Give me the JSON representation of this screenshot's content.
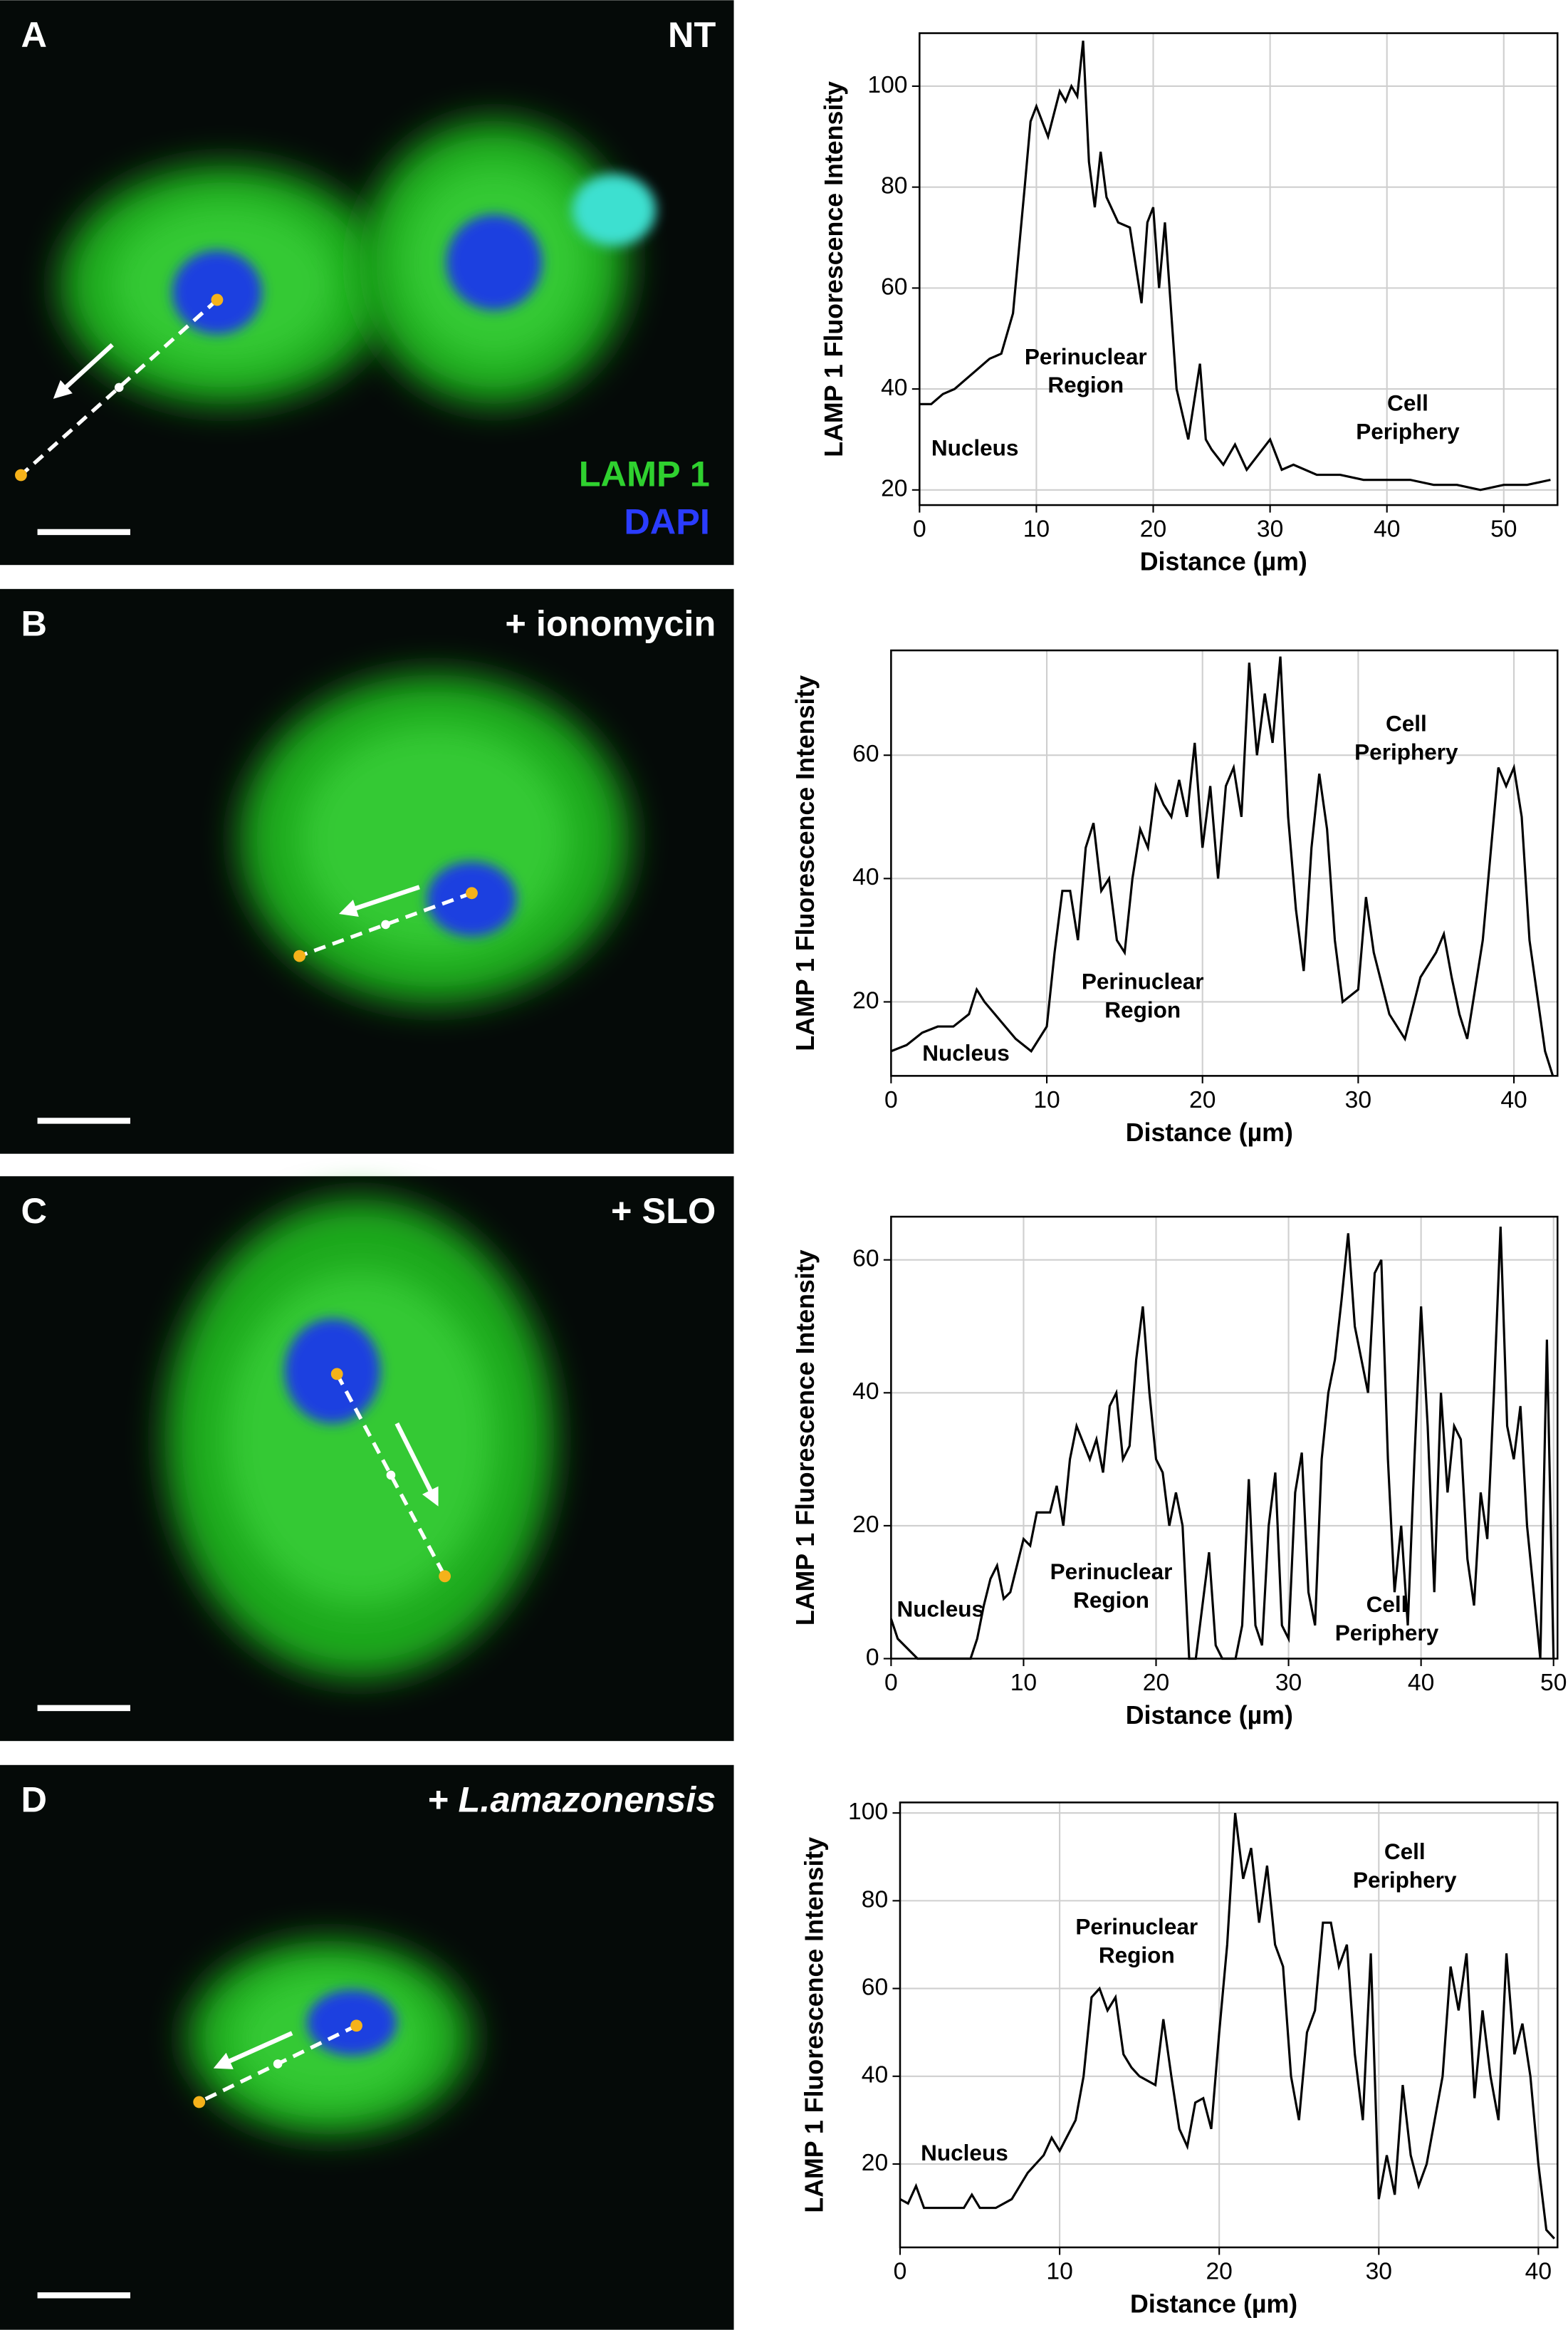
{
  "images": [
    {
      "letter": "A",
      "label": "NT",
      "stains": [
        "LAMP 1",
        "DAPI"
      ]
    },
    {
      "letter": "B",
      "label": "+ ionomycin"
    },
    {
      "letter": "C",
      "label": "+ SLO"
    },
    {
      "letter": "D",
      "label": "+ L.amazonensis"
    }
  ],
  "chart_data": [
    {
      "type": "line",
      "x_label": "Distance (µm)",
      "y_label": "LAMP 1 Fluorescence Intensity",
      "color": "#000000",
      "grid": true,
      "xlim": [
        0,
        54.6
      ],
      "ylim": [
        17,
        110.5
      ],
      "xticks": [
        0,
        10,
        20,
        30,
        40,
        50
      ],
      "yticks": [
        20,
        40,
        60,
        80,
        100
      ],
      "annotations": [
        {
          "lines": [
            "Nucleus"
          ]
        },
        {
          "lines": [
            "Perinuclear",
            "Region"
          ]
        },
        {
          "lines": [
            "Cell",
            "Periphery"
          ]
        }
      ],
      "x": [
        0,
        1,
        2,
        3,
        4,
        5,
        6,
        7,
        8,
        9,
        9.5,
        10,
        11,
        12,
        12.5,
        13,
        13.5,
        14,
        14.5,
        15,
        15.5,
        16,
        17,
        18,
        19,
        19.5,
        20,
        20.5,
        21,
        22,
        23,
        24,
        24.5,
        25,
        26,
        27,
        28,
        29,
        30,
        31,
        32,
        34,
        36,
        38,
        40,
        42,
        44,
        46,
        48,
        50,
        52,
        54
      ],
      "values": [
        37,
        37,
        39,
        40,
        42,
        44,
        46,
        47,
        55,
        80,
        93,
        96,
        90,
        99,
        97,
        100,
        98,
        109,
        85,
        76,
        87,
        78,
        73,
        72,
        57,
        73,
        76,
        60,
        73,
        40,
        30,
        45,
        30,
        28,
        25,
        29,
        24,
        27,
        30,
        24,
        25,
        23,
        23,
        22,
        22,
        22,
        21,
        21,
        20,
        21,
        21,
        22
      ]
    },
    {
      "type": "line",
      "x_label": "Distance (µm)",
      "y_label": "LAMP 1 Fluorescence Intensity",
      "color": "#000000",
      "grid": true,
      "xlim": [
        0,
        42.8
      ],
      "ylim": [
        8,
        77
      ],
      "xticks": [
        0,
        10,
        20,
        30,
        40
      ],
      "yticks": [
        20,
        40,
        60
      ],
      "annotations": [
        {
          "lines": [
            "Nucleus"
          ]
        },
        {
          "lines": [
            "Perinuclear",
            "Region"
          ]
        },
        {
          "lines": [
            "Cell",
            "Periphery"
          ]
        }
      ],
      "x": [
        0,
        1,
        2,
        3,
        4,
        5,
        5.5,
        6,
        7,
        8,
        9,
        10,
        10.5,
        11,
        11.5,
        12,
        12.5,
        13,
        13.5,
        14,
        14.5,
        15,
        15.5,
        16,
        16.5,
        17,
        17.5,
        18,
        18.5,
        19,
        19.5,
        20,
        20.5,
        21,
        21.5,
        22,
        22.5,
        23,
        23.5,
        24,
        24.5,
        25,
        25.5,
        26,
        26.5,
        27,
        27.5,
        28,
        28.5,
        29,
        30,
        30.5,
        31,
        32,
        33,
        34,
        35,
        35.5,
        36,
        36.5,
        37,
        38,
        39,
        39.5,
        40,
        40.5,
        41,
        42,
        42.5
      ],
      "values": [
        12,
        13,
        15,
        16,
        16,
        18,
        22,
        20,
        17,
        14,
        12,
        16,
        28,
        38,
        38,
        30,
        45,
        49,
        38,
        40,
        30,
        28,
        40,
        48,
        45,
        55,
        52,
        50,
        56,
        50,
        62,
        45,
        55,
        40,
        55,
        58,
        50,
        75,
        60,
        70,
        62,
        76,
        50,
        35,
        25,
        45,
        57,
        48,
        30,
        20,
        22,
        37,
        28,
        18,
        14,
        24,
        28,
        31,
        24,
        18,
        14,
        30,
        58,
        55,
        58,
        50,
        30,
        12,
        8
      ]
    },
    {
      "type": "line",
      "x_label": "Distance (µm)",
      "y_label": "LAMP 1 Fluorescence Intensity",
      "color": "#000000",
      "grid": true,
      "xlim": [
        0,
        50.3
      ],
      "ylim": [
        0,
        66.5
      ],
      "xticks": [
        0,
        10,
        20,
        30,
        40,
        50
      ],
      "yticks": [
        0,
        20,
        40,
        60
      ],
      "annotations": [
        {
          "lines": [
            "Nucleus"
          ]
        },
        {
          "lines": [
            "Perinuclear",
            "Region"
          ]
        },
        {
          "lines": [
            "Cell",
            "Periphery"
          ]
        }
      ],
      "x": [
        0,
        0.5,
        1,
        2,
        4,
        6,
        6.5,
        7,
        7.5,
        8,
        8.5,
        9,
        10,
        10.5,
        11,
        12,
        12.5,
        13,
        13.5,
        14,
        15,
        15.5,
        16,
        16.5,
        17,
        17.5,
        18,
        18.5,
        19,
        19.5,
        20,
        20.5,
        21,
        21.5,
        22,
        22.5,
        23,
        24,
        24.5,
        25,
        26,
        26.5,
        27,
        27.5,
        28,
        28.5,
        29,
        29.5,
        30,
        30.5,
        31,
        31.5,
        32,
        32.5,
        33,
        33.5,
        34,
        34.5,
        35,
        35.5,
        36,
        36.5,
        37,
        37.5,
        38,
        38.5,
        39,
        39.5,
        40,
        40.5,
        41,
        41.5,
        42,
        42.5,
        43,
        43.5,
        44,
        44.5,
        45,
        45.5,
        46,
        46.5,
        47,
        47.5,
        48,
        48.5,
        49,
        49.5,
        50
      ],
      "values": [
        6,
        3,
        2,
        0,
        0,
        0,
        3,
        8,
        12,
        14,
        9,
        10,
        18,
        17,
        22,
        22,
        26,
        20,
        30,
        35,
        30,
        33,
        28,
        38,
        40,
        30,
        32,
        45,
        53,
        40,
        30,
        28,
        20,
        25,
        20,
        0,
        0,
        16,
        2,
        0,
        0,
        5,
        27,
        5,
        2,
        20,
        28,
        5,
        3,
        25,
        31,
        10,
        5,
        30,
        40,
        45,
        54,
        64,
        50,
        45,
        40,
        58,
        60,
        30,
        10,
        20,
        5,
        30,
        53,
        35,
        10,
        40,
        25,
        35,
        33,
        15,
        8,
        25,
        18,
        40,
        65,
        35,
        30,
        38,
        20,
        10,
        0,
        48,
        0
      ]
    },
    {
      "type": "line",
      "x_label": "Distance (µm)",
      "y_label": "LAMP 1 Fluorescence Intensity",
      "color": "#000000",
      "grid": true,
      "xlim": [
        0,
        41.2
      ],
      "ylim": [
        1,
        102.4
      ],
      "xticks": [
        0,
        10,
        20,
        30,
        40
      ],
      "yticks": [
        20,
        40,
        60,
        80,
        100
      ],
      "annotations": [
        {
          "lines": [
            "Nucleus"
          ]
        },
        {
          "lines": [
            "Perinuclear",
            "Region"
          ]
        },
        {
          "lines": [
            "Cell",
            "Periphery"
          ]
        }
      ],
      "x": [
        0,
        0.5,
        1,
        1.5,
        2,
        3,
        4,
        4.5,
        5,
        6,
        7,
        8,
        9,
        9.5,
        10,
        11,
        11.5,
        12,
        12.5,
        13,
        13.5,
        14,
        14.5,
        15,
        16,
        16.5,
        17,
        17.5,
        18,
        18.5,
        19,
        19.5,
        20,
        20.5,
        21,
        21.5,
        22,
        22.5,
        23,
        23.5,
        24,
        24.5,
        25,
        25.5,
        26,
        26.5,
        27,
        27.5,
        28,
        28.5,
        29,
        29.5,
        30,
        30.5,
        31,
        31.5,
        32,
        32.5,
        33,
        33.5,
        34,
        34.5,
        35,
        35.5,
        36,
        36.5,
        37,
        37.5,
        38,
        38.5,
        39,
        39.5,
        40,
        40.5,
        41
      ],
      "values": [
        12,
        11,
        15,
        10,
        10,
        10,
        10,
        13,
        10,
        10,
        12,
        18,
        22,
        26,
        23,
        30,
        40,
        58,
        60,
        55,
        58,
        45,
        42,
        40,
        38,
        53,
        40,
        28,
        24,
        34,
        35,
        28,
        50,
        70,
        100,
        85,
        92,
        75,
        88,
        70,
        65,
        40,
        30,
        50,
        55,
        75,
        75,
        65,
        70,
        45,
        30,
        68,
        12,
        22,
        13,
        38,
        22,
        15,
        20,
        30,
        40,
        65,
        55,
        68,
        35,
        55,
        40,
        30,
        68,
        45,
        52,
        40,
        20,
        5,
        3
      ]
    }
  ]
}
